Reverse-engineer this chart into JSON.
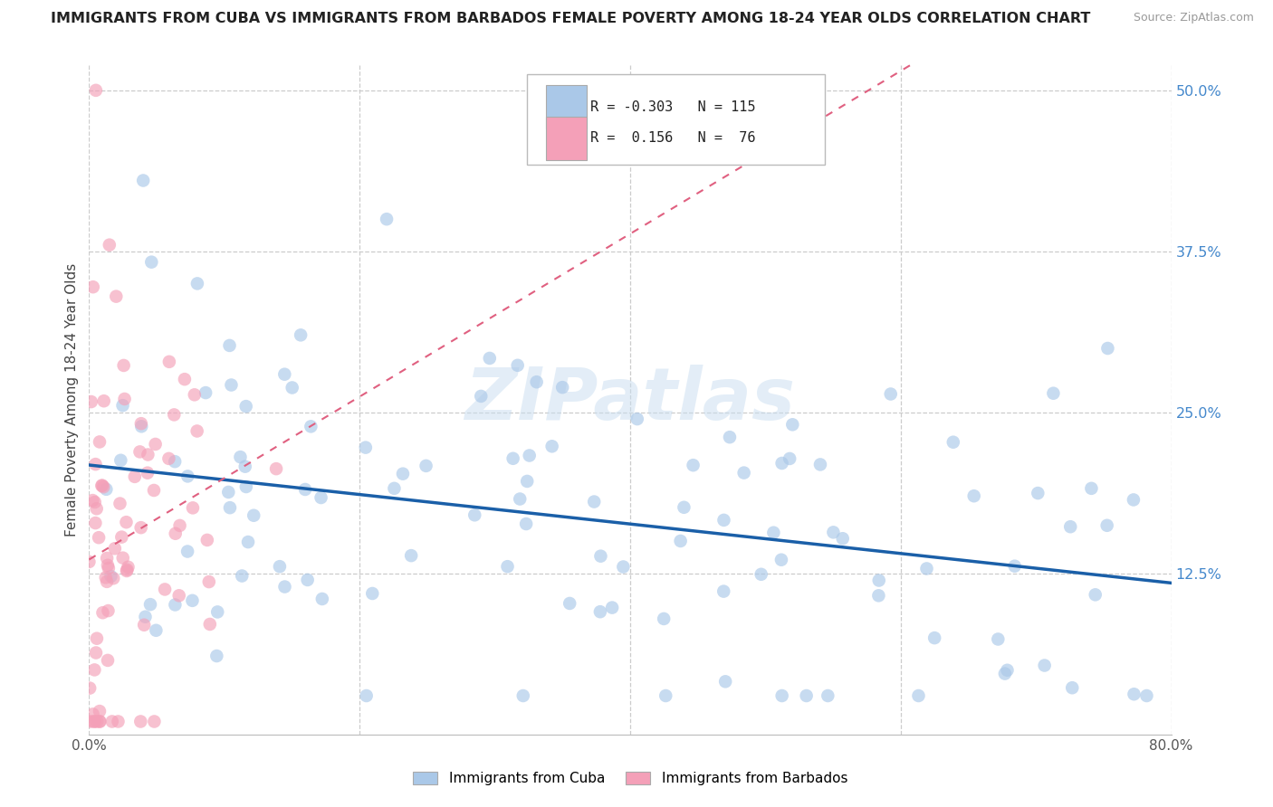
{
  "title": "IMMIGRANTS FROM CUBA VS IMMIGRANTS FROM BARBADOS FEMALE POVERTY AMONG 18-24 YEAR OLDS CORRELATION CHART",
  "source": "Source: ZipAtlas.com",
  "ylabel": "Female Poverty Among 18-24 Year Olds",
  "xlim": [
    0.0,
    0.8
  ],
  "ylim": [
    0.0,
    0.52
  ],
  "ytick_labels_right": [
    "12.5%",
    "25.0%",
    "37.5%",
    "50.0%"
  ],
  "ytick_positions_right": [
    0.125,
    0.25,
    0.375,
    0.5
  ],
  "xtick_labels": [
    "0.0%",
    "",
    "",
    "",
    "80.0%"
  ],
  "xtick_positions": [
    0.0,
    0.2,
    0.4,
    0.6,
    0.8
  ],
  "cuba_color": "#aac8e8",
  "barbados_color": "#f4a0b8",
  "cuba_line_color": "#1a5fa8",
  "barbados_line_color": "#e06080",
  "cuba_R": -0.303,
  "cuba_N": 115,
  "barbados_R": 0.156,
  "barbados_N": 76,
  "legend_label_cuba": "Immigrants from Cuba",
  "legend_label_barbados": "Immigrants from Barbados",
  "watermark_text": "ZIPatlas",
  "background_color": "#ffffff",
  "grid_color": "#cccccc",
  "title_color": "#222222",
  "right_axis_color": "#4488cc",
  "dot_size": 110,
  "dot_alpha": 0.65
}
